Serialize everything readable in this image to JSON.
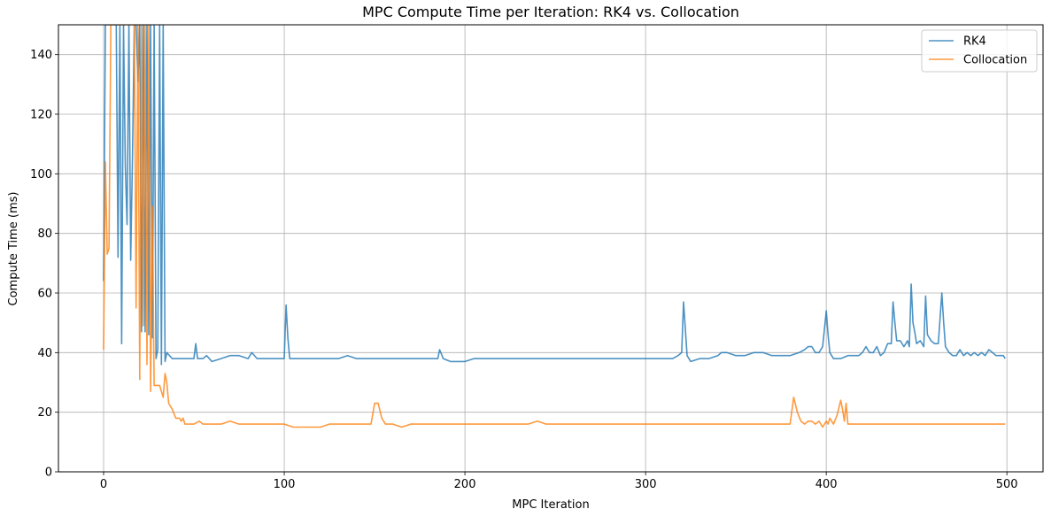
{
  "chart_data": {
    "type": "line",
    "title": "MPC Compute Time per Iteration: RK4 vs. Collocation",
    "xlabel": "MPC Iteration",
    "ylabel": "Compute Time (ms)",
    "xlim": [
      -25,
      520
    ],
    "ylim": [
      0,
      150
    ],
    "xticks": [
      0,
      100,
      200,
      300,
      400,
      500
    ],
    "yticks": [
      0,
      20,
      40,
      60,
      80,
      100,
      120,
      140
    ],
    "grid": true,
    "legend": "top-right",
    "series": [
      {
        "name": "RK4",
        "color": "#1f77b4",
        "points": [
          [
            0,
            64
          ],
          [
            1,
            150
          ],
          [
            2,
            150
          ],
          [
            3,
            150
          ],
          [
            4,
            150
          ],
          [
            5,
            150
          ],
          [
            6,
            150
          ],
          [
            7,
            150
          ],
          [
            8,
            72
          ],
          [
            9,
            150
          ],
          [
            10,
            43
          ],
          [
            11,
            150
          ],
          [
            12,
            103
          ],
          [
            13,
            83
          ],
          [
            14,
            150
          ],
          [
            15,
            71
          ],
          [
            16,
            107
          ],
          [
            17,
            150
          ],
          [
            18,
            150
          ],
          [
            19,
            131
          ],
          [
            20,
            150
          ],
          [
            21,
            47
          ],
          [
            22,
            150
          ],
          [
            23,
            47
          ],
          [
            24,
            150
          ],
          [
            25,
            46
          ],
          [
            26,
            150
          ],
          [
            27,
            45
          ],
          [
            28,
            150
          ],
          [
            29,
            38
          ],
          [
            30,
            41
          ],
          [
            31,
            150
          ],
          [
            32,
            36
          ],
          [
            33,
            150
          ],
          [
            34,
            37
          ],
          [
            35,
            40
          ],
          [
            38,
            38
          ],
          [
            42,
            38
          ],
          [
            45,
            38
          ],
          [
            48,
            38
          ],
          [
            50,
            38
          ],
          [
            51,
            43
          ],
          [
            52,
            38
          ],
          [
            55,
            38
          ],
          [
            57,
            39
          ],
          [
            60,
            37
          ],
          [
            65,
            38
          ],
          [
            70,
            39
          ],
          [
            75,
            39
          ],
          [
            80,
            38
          ],
          [
            82,
            40
          ],
          [
            85,
            38
          ],
          [
            90,
            38
          ],
          [
            95,
            38
          ],
          [
            98,
            38
          ],
          [
            100,
            38
          ],
          [
            101,
            56
          ],
          [
            102,
            45
          ],
          [
            103,
            38
          ],
          [
            108,
            38
          ],
          [
            112,
            38
          ],
          [
            115,
            38
          ],
          [
            120,
            38
          ],
          [
            125,
            38
          ],
          [
            130,
            38
          ],
          [
            135,
            39
          ],
          [
            140,
            38
          ],
          [
            145,
            38
          ],
          [
            150,
            38
          ],
          [
            155,
            38
          ],
          [
            160,
            38
          ],
          [
            165,
            38
          ],
          [
            170,
            38
          ],
          [
            175,
            38
          ],
          [
            180,
            38
          ],
          [
            185,
            38
          ],
          [
            186,
            41
          ],
          [
            188,
            38
          ],
          [
            192,
            37
          ],
          [
            196,
            37
          ],
          [
            200,
            37
          ],
          [
            205,
            38
          ],
          [
            210,
            38
          ],
          [
            215,
            38
          ],
          [
            220,
            38
          ],
          [
            225,
            38
          ],
          [
            230,
            38
          ],
          [
            235,
            38
          ],
          [
            240,
            38
          ],
          [
            245,
            38
          ],
          [
            250,
            38
          ],
          [
            255,
            38
          ],
          [
            260,
            38
          ],
          [
            265,
            38
          ],
          [
            270,
            38
          ],
          [
            275,
            38
          ],
          [
            280,
            38
          ],
          [
            285,
            38
          ],
          [
            290,
            38
          ],
          [
            295,
            38
          ],
          [
            300,
            38
          ],
          [
            305,
            38
          ],
          [
            310,
            38
          ],
          [
            315,
            38
          ],
          [
            318,
            39
          ],
          [
            320,
            40
          ],
          [
            321,
            57
          ],
          [
            322,
            48
          ],
          [
            323,
            39
          ],
          [
            325,
            37
          ],
          [
            330,
            38
          ],
          [
            335,
            38
          ],
          [
            340,
            39
          ],
          [
            342,
            40
          ],
          [
            345,
            40
          ],
          [
            350,
            39
          ],
          [
            355,
            39
          ],
          [
            360,
            40
          ],
          [
            365,
            40
          ],
          [
            370,
            39
          ],
          [
            375,
            39
          ],
          [
            380,
            39
          ],
          [
            385,
            40
          ],
          [
            388,
            41
          ],
          [
            390,
            42
          ],
          [
            392,
            42
          ],
          [
            394,
            40
          ],
          [
            396,
            40
          ],
          [
            398,
            42
          ],
          [
            400,
            54
          ],
          [
            401,
            46
          ],
          [
            402,
            40
          ],
          [
            404,
            38
          ],
          [
            408,
            38
          ],
          [
            412,
            39
          ],
          [
            415,
            39
          ],
          [
            418,
            39
          ],
          [
            420,
            40
          ],
          [
            422,
            42
          ],
          [
            424,
            40
          ],
          [
            426,
            40
          ],
          [
            428,
            42
          ],
          [
            430,
            39
          ],
          [
            432,
            40
          ],
          [
            434,
            43
          ],
          [
            436,
            43
          ],
          [
            437,
            57
          ],
          [
            438,
            50
          ],
          [
            439,
            44
          ],
          [
            441,
            44
          ],
          [
            443,
            42
          ],
          [
            445,
            44
          ],
          [
            446,
            42
          ],
          [
            447,
            63
          ],
          [
            448,
            50
          ],
          [
            449,
            47
          ],
          [
            450,
            43
          ],
          [
            452,
            44
          ],
          [
            454,
            42
          ],
          [
            455,
            59
          ],
          [
            456,
            46
          ],
          [
            458,
            44
          ],
          [
            460,
            43
          ],
          [
            462,
            43
          ],
          [
            464,
            60
          ],
          [
            465,
            50
          ],
          [
            466,
            42
          ],
          [
            468,
            40
          ],
          [
            470,
            39
          ],
          [
            472,
            39
          ],
          [
            474,
            41
          ],
          [
            476,
            39
          ],
          [
            478,
            40
          ],
          [
            480,
            39
          ],
          [
            482,
            40
          ],
          [
            484,
            39
          ],
          [
            486,
            40
          ],
          [
            488,
            39
          ],
          [
            490,
            41
          ],
          [
            492,
            40
          ],
          [
            494,
            39
          ],
          [
            496,
            39
          ],
          [
            498,
            39
          ],
          [
            499,
            38
          ]
        ]
      },
      {
        "name": "Collocation",
        "color": "#ff7f0e",
        "points": [
          [
            0,
            41
          ],
          [
            1,
            104
          ],
          [
            2,
            73
          ],
          [
            3,
            75
          ],
          [
            4,
            150
          ],
          [
            5,
            150
          ],
          [
            6,
            150
          ],
          [
            7,
            150
          ],
          [
            8,
            150
          ],
          [
            9,
            150
          ],
          [
            10,
            150
          ],
          [
            11,
            150
          ],
          [
            12,
            150
          ],
          [
            13,
            150
          ],
          [
            14,
            150
          ],
          [
            15,
            150
          ],
          [
            16,
            150
          ],
          [
            17,
            150
          ],
          [
            18,
            55
          ],
          [
            19,
            150
          ],
          [
            20,
            31
          ],
          [
            21,
            150
          ],
          [
            22,
            49
          ],
          [
            23,
            150
          ],
          [
            24,
            36
          ],
          [
            25,
            150
          ],
          [
            26,
            27
          ],
          [
            27,
            89
          ],
          [
            28,
            29
          ],
          [
            29,
            29
          ],
          [
            30,
            29
          ],
          [
            31,
            29
          ],
          [
            32,
            27
          ],
          [
            33,
            25
          ],
          [
            34,
            33
          ],
          [
            35,
            30
          ],
          [
            36,
            23
          ],
          [
            38,
            21
          ],
          [
            40,
            18
          ],
          [
            42,
            18
          ],
          [
            43,
            17
          ],
          [
            44,
            18
          ],
          [
            45,
            16
          ],
          [
            48,
            16
          ],
          [
            50,
            16
          ],
          [
            53,
            17
          ],
          [
            55,
            16
          ],
          [
            60,
            16
          ],
          [
            65,
            16
          ],
          [
            70,
            17
          ],
          [
            75,
            16
          ],
          [
            80,
            16
          ],
          [
            85,
            16
          ],
          [
            90,
            16
          ],
          [
            95,
            16
          ],
          [
            100,
            16
          ],
          [
            105,
            15
          ],
          [
            110,
            15
          ],
          [
            115,
            15
          ],
          [
            120,
            15
          ],
          [
            125,
            16
          ],
          [
            130,
            16
          ],
          [
            135,
            16
          ],
          [
            140,
            16
          ],
          [
            145,
            16
          ],
          [
            148,
            16
          ],
          [
            150,
            23
          ],
          [
            152,
            23
          ],
          [
            154,
            18
          ],
          [
            156,
            16
          ],
          [
            160,
            16
          ],
          [
            165,
            15
          ],
          [
            170,
            16
          ],
          [
            175,
            16
          ],
          [
            180,
            16
          ],
          [
            185,
            16
          ],
          [
            190,
            16
          ],
          [
            195,
            16
          ],
          [
            200,
            16
          ],
          [
            205,
            16
          ],
          [
            210,
            16
          ],
          [
            215,
            16
          ],
          [
            220,
            16
          ],
          [
            225,
            16
          ],
          [
            230,
            16
          ],
          [
            235,
            16
          ],
          [
            240,
            17
          ],
          [
            245,
            16
          ],
          [
            250,
            16
          ],
          [
            255,
            16
          ],
          [
            260,
            16
          ],
          [
            265,
            16
          ],
          [
            270,
            16
          ],
          [
            275,
            16
          ],
          [
            280,
            16
          ],
          [
            285,
            16
          ],
          [
            290,
            16
          ],
          [
            295,
            16
          ],
          [
            300,
            16
          ],
          [
            305,
            16
          ],
          [
            310,
            16
          ],
          [
            315,
            16
          ],
          [
            320,
            16
          ],
          [
            325,
            16
          ],
          [
            330,
            16
          ],
          [
            335,
            16
          ],
          [
            340,
            16
          ],
          [
            345,
            16
          ],
          [
            350,
            16
          ],
          [
            355,
            16
          ],
          [
            360,
            16
          ],
          [
            365,
            16
          ],
          [
            370,
            16
          ],
          [
            375,
            16
          ],
          [
            380,
            16
          ],
          [
            382,
            25
          ],
          [
            384,
            20
          ],
          [
            386,
            17
          ],
          [
            388,
            16
          ],
          [
            390,
            17
          ],
          [
            392,
            17
          ],
          [
            394,
            16
          ],
          [
            396,
            17
          ],
          [
            398,
            15
          ],
          [
            400,
            17
          ],
          [
            401,
            16
          ],
          [
            402,
            18
          ],
          [
            404,
            16
          ],
          [
            406,
            19
          ],
          [
            408,
            24
          ],
          [
            409,
            21
          ],
          [
            410,
            17
          ],
          [
            411,
            23
          ],
          [
            412,
            16
          ],
          [
            414,
            16
          ],
          [
            418,
            16
          ],
          [
            422,
            16
          ],
          [
            426,
            16
          ],
          [
            430,
            16
          ],
          [
            435,
            16
          ],
          [
            440,
            16
          ],
          [
            445,
            16
          ],
          [
            450,
            16
          ],
          [
            455,
            16
          ],
          [
            460,
            16
          ],
          [
            465,
            16
          ],
          [
            470,
            16
          ],
          [
            475,
            16
          ],
          [
            480,
            16
          ],
          [
            485,
            16
          ],
          [
            490,
            16
          ],
          [
            495,
            16
          ],
          [
            499,
            16
          ]
        ]
      }
    ]
  }
}
